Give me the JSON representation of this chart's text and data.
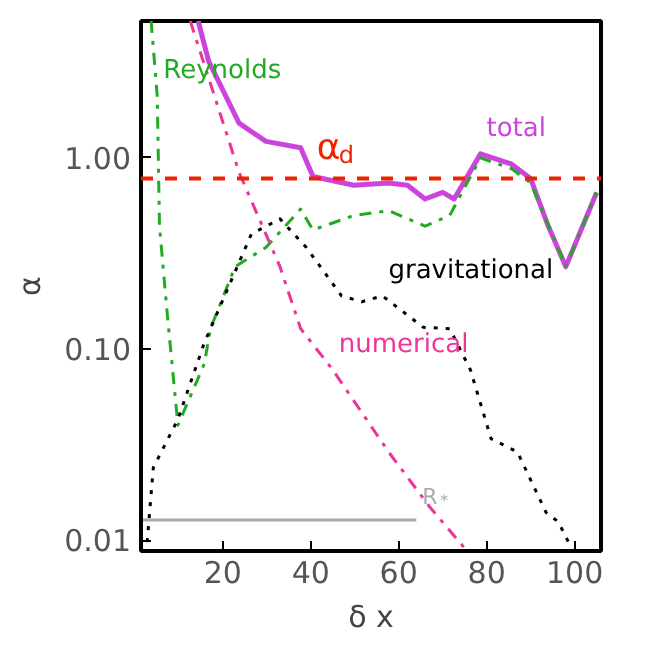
{
  "chart_data": {
    "type": "line",
    "xlabel": "δ x",
    "ylabel": "α",
    "log": "y",
    "xlim": [
      1.4,
      106
    ],
    "ylim": [
      0.0088,
      5.2
    ],
    "xticks": [
      20,
      40,
      60,
      80,
      100
    ],
    "yticks": [
      {
        "value": 0.01,
        "label": "0.01"
      },
      {
        "value": 0.1,
        "label": "0.10"
      },
      {
        "value": 1,
        "label": "1.00"
      }
    ],
    "grid": false,
    "series": [
      {
        "color": "#cc44dd",
        "line_style": "solid",
        "x": [
          14.4,
          16.8,
          23.7,
          29.8,
          37.7,
          40.5,
          49.8,
          57.7,
          62,
          66,
          70,
          72.6,
          78.6,
          85.6,
          90,
          94,
          98,
          105
        ],
        "values": [
          5.2,
          3.2,
          1.52,
          1.22,
          1.13,
          0.8,
          0.72,
          0.74,
          0.72,
          0.61,
          0.66,
          0.61,
          1.05,
          0.93,
          0.78,
          0.44,
          0.27,
          0.66
        ]
      },
      {
        "color": "#22aa22",
        "line_style": "dashdot",
        "x": [
          3.7,
          5.1,
          5.6,
          7.4,
          9.8,
          15.8,
          17.2,
          22.8,
          29.8,
          37.7,
          40.5,
          49.8,
          57.7,
          66,
          71.6,
          78.6,
          85.6,
          90,
          98,
          105
        ],
        "values": [
          5.2,
          2.1,
          0.44,
          0.15,
          0.04,
          0.084,
          0.128,
          0.27,
          0.34,
          0.54,
          0.42,
          0.5,
          0.53,
          0.44,
          0.5,
          1.0,
          0.88,
          0.74,
          0.27,
          0.66
        ]
      },
      {
        "color": "#000000",
        "line_style": "dotted",
        "x": [
          2.8,
          4.2,
          9.8,
          15.8,
          26.5,
          33,
          39,
          47,
          51.6,
          56.3,
          65.6,
          71.6,
          76.3,
          81,
          87,
          93.5,
          96.3,
          98.6
        ],
        "values": [
          0.0098,
          0.024,
          0.043,
          0.108,
          0.4,
          0.48,
          0.34,
          0.19,
          0.177,
          0.19,
          0.13,
          0.128,
          0.078,
          0.034,
          0.029,
          0.014,
          0.0125,
          0.0098
        ]
      },
      {
        "color": "#ee3399",
        "line_style": "dashdot",
        "x": [
          12.6,
          23.7,
          33,
          37.7,
          45,
          57.7,
          67,
          75
        ],
        "values": [
          5.2,
          0.84,
          0.27,
          0.128,
          0.078,
          0.029,
          0.015,
          0.0091
        ]
      },
      {
        "color": "#aaaaaa",
        "line_style": "solid",
        "x": [
          1.4,
          64
        ],
        "values": [
          0.0128,
          0.0128
        ]
      }
    ],
    "ref_lines": [
      {
        "axis": "y",
        "value": 0.78,
        "color": "#ee2200",
        "line_style": "dashed",
        "label": null
      }
    ],
    "annotations": [
      {
        "text": "total",
        "x": 78.6,
        "y": 1.05
      },
      {
        "text": "Reynolds",
        "x": 5.1,
        "y": 2.1
      },
      {
        "text": "gravitational",
        "x": 56.3,
        "y": 0.19
      },
      {
        "text": "numerical",
        "x": 45,
        "y": 0.078
      },
      {
        "text": "R$_{*}$",
        "x": 64,
        "y": 0.0128
      },
      {
        "text": "α$_{d}$",
        "x": 40,
        "y": 0.78
      }
    ]
  }
}
